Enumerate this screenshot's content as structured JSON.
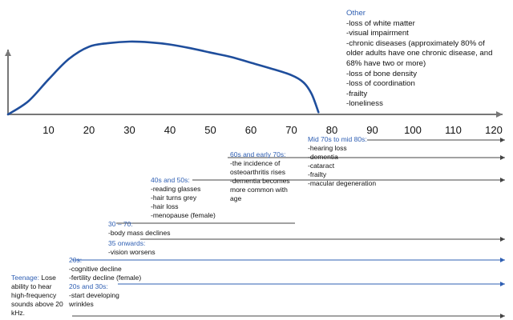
{
  "chart_data": {
    "type": "line",
    "x_ticks": [
      "10",
      "20",
      "30",
      "40",
      "50",
      "60",
      "70",
      "80",
      "90",
      "100",
      "110",
      "120"
    ],
    "x_range": [
      0,
      120
    ],
    "curve": {
      "x": [
        0,
        5,
        10,
        15,
        20,
        25,
        30,
        35,
        40,
        45,
        50,
        55,
        60,
        65,
        70,
        73,
        75,
        76.7
      ],
      "level": [
        0,
        0.18,
        0.48,
        0.76,
        0.93,
        0.98,
        1.0,
        0.99,
        0.96,
        0.91,
        0.85,
        0.79,
        0.71,
        0.63,
        0.54,
        0.44,
        0.28,
        0.03
      ]
    }
  },
  "other": {
    "title": "Other",
    "items": [
      "-loss of white matter",
      "-visual impairment",
      "-chronic diseases (approximately 80% of",
      "older adults have one chronic disease, and",
      "68% have two or more)",
      "-loss of bone density",
      "-loss of coordination",
      "-frailty",
      "-loneliness"
    ]
  },
  "stages": {
    "teenage": {
      "title": "Teenage:",
      "lines": [
        "Lose",
        "ability to hear",
        "high-frequency",
        "sounds above 20",
        "kHz."
      ]
    },
    "twenties": {
      "title": "20s:",
      "lines": [
        "-cognitive decline",
        "-fertility decline (female)"
      ]
    },
    "twenties_thirties": {
      "title": "20s and 30s:",
      "lines": [
        "-start developing",
        "wrinkles"
      ]
    },
    "thirty_seventy": {
      "title": "30 – 70:",
      "lines": [
        "-body mass declines"
      ]
    },
    "thirtyfive": {
      "title": "35 onwards:",
      "lines": [
        "-vision worsens"
      ]
    },
    "forties_fifties": {
      "title": "40s and 50s:",
      "lines": [
        "-reading glasses",
        "-hair turns grey",
        "-hair loss",
        "-menopause (female)"
      ]
    },
    "sixties": {
      "title": "60s and early 70s:",
      "lines": [
        "-the incidence of",
        "osteoarthritis rises",
        "-dementia becomes",
        "more common with",
        "age"
      ]
    },
    "seventies": {
      "title": "Mid 70s to mid 80s:",
      "lines": [
        "-hearing loss",
        "-dementia",
        "-cataract",
        "-frailty",
        "-macular degeneration"
      ]
    }
  },
  "colors": {
    "curve": "#1f4e9c",
    "blue_text": "#2f5fb3",
    "arrow_dark": "#444444",
    "arrow_blue": "#2f5fb3"
  }
}
